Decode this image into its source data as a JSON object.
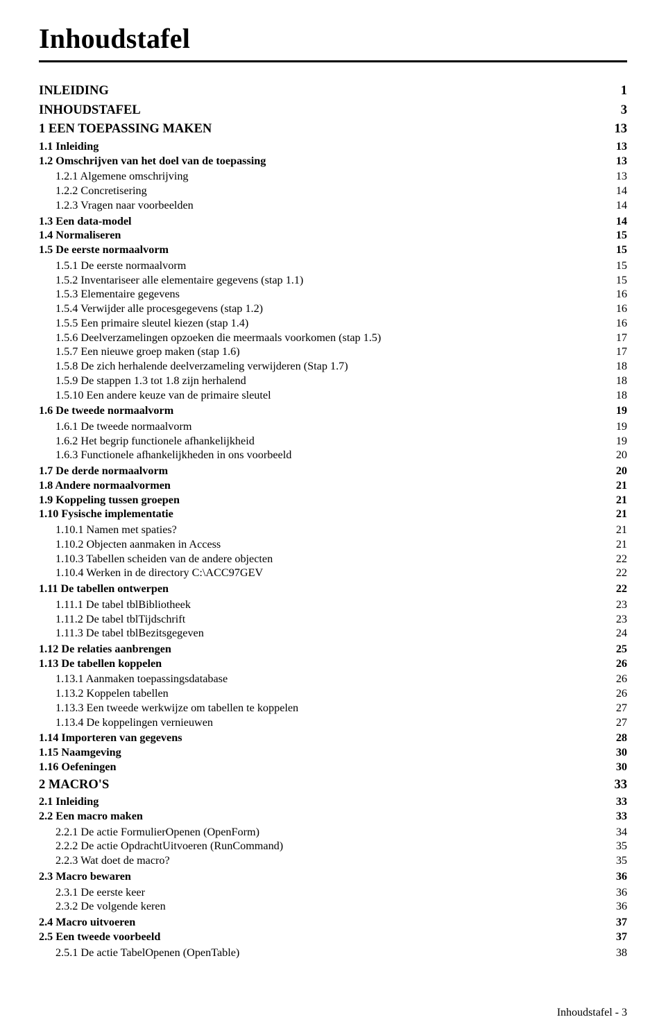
{
  "page": {
    "title": "Inhoudstafel",
    "footer": "Inhoudstafel - 3"
  },
  "toc": [
    {
      "label": "INLEIDING",
      "page": "1",
      "level": 1
    },
    {
      "label": "INHOUDSTAFEL",
      "page": "3",
      "level": 1
    },
    {
      "label": "1 EEN TOEPASSING MAKEN",
      "page": "13",
      "level": 1
    },
    {
      "label": "1.1 Inleiding",
      "page": "13",
      "level": 2
    },
    {
      "label": "1.2 Omschrijven van het doel van de toepassing",
      "page": "13",
      "level": 2
    },
    {
      "label": "1.2.1 Algemene omschrijving",
      "page": "13",
      "level": 3
    },
    {
      "label": "1.2.2 Concretisering",
      "page": "14",
      "level": 3
    },
    {
      "label": "1.2.3 Vragen naar voorbeelden",
      "page": "14",
      "level": 3
    },
    {
      "label": "1.3 Een data-model",
      "page": "14",
      "level": 2
    },
    {
      "label": "1.4 Normaliseren",
      "page": "15",
      "level": 2
    },
    {
      "label": "1.5 De eerste normaalvorm",
      "page": "15",
      "level": 2
    },
    {
      "label": "1.5.1 De eerste normaalvorm",
      "page": "15",
      "level": 3
    },
    {
      "label": "1.5.2 Inventariseer alle elementaire gegevens (stap 1.1)",
      "page": "15",
      "level": 3
    },
    {
      "label": "1.5.3 Elementaire gegevens",
      "page": "16",
      "level": 3
    },
    {
      "label": "1.5.4 Verwijder alle procesgegevens (stap 1.2)",
      "page": "16",
      "level": 3
    },
    {
      "label": "1.5.5 Een primaire sleutel kiezen (stap 1.4)",
      "page": "16",
      "level": 3
    },
    {
      "label": "1.5.6 Deelverzamelingen opzoeken die meermaals voorkomen (stap 1.5)",
      "page": "17",
      "level": 3
    },
    {
      "label": "1.5.7 Een nieuwe groep maken (stap 1.6)",
      "page": "17",
      "level": 3
    },
    {
      "label": "1.5.8 De zich herhalende deelverzameling verwijderen (Stap 1.7)",
      "page": "18",
      "level": 3
    },
    {
      "label": "1.5.9 De stappen 1.3 tot 1.8 zijn herhalend",
      "page": "18",
      "level": 3
    },
    {
      "label": "1.5.10 Een andere keuze van de primaire sleutel",
      "page": "18",
      "level": 3
    },
    {
      "label": "1.6 De tweede normaalvorm",
      "page": "19",
      "level": 2
    },
    {
      "label": "1.6.1 De tweede normaalvorm",
      "page": "19",
      "level": 3
    },
    {
      "label": "1.6.2 Het begrip functionele afhankelijkheid",
      "page": "19",
      "level": 3
    },
    {
      "label": "1.6.3 Functionele afhankelijkheden in ons voorbeeld",
      "page": "20",
      "level": 3
    },
    {
      "label": "1.7 De derde normaalvorm",
      "page": "20",
      "level": 2
    },
    {
      "label": "1.8 Andere normaalvormen",
      "page": "21",
      "level": 2
    },
    {
      "label": "1.9 Koppeling tussen groepen",
      "page": "21",
      "level": 2
    },
    {
      "label": "1.10 Fysische implementatie",
      "page": "21",
      "level": 2
    },
    {
      "label": "1.10.1 Namen met spaties?",
      "page": "21",
      "level": 3
    },
    {
      "label": "1.10.2 Objecten aanmaken in Access",
      "page": "21",
      "level": 3
    },
    {
      "label": "1.10.3 Tabellen scheiden van de andere objecten",
      "page": "22",
      "level": 3
    },
    {
      "label": "1.10.4 Werken in de directory C:\\ACC97GEV",
      "page": "22",
      "level": 3
    },
    {
      "label": "1.11 De tabellen ontwerpen",
      "page": "22",
      "level": 2
    },
    {
      "label": "1.11.1 De tabel tblBibliotheek",
      "page": "23",
      "level": 3
    },
    {
      "label": "1.11.2 De tabel tblTijdschrift",
      "page": "23",
      "level": 3
    },
    {
      "label": "1.11.3 De tabel tblBezitsgegeven",
      "page": "24",
      "level": 3
    },
    {
      "label": "1.12 De relaties aanbrengen",
      "page": "25",
      "level": 2
    },
    {
      "label": "1.13 De tabellen koppelen",
      "page": "26",
      "level": 2
    },
    {
      "label": "1.13.1 Aanmaken toepassingsdatabase",
      "page": "26",
      "level": 3
    },
    {
      "label": "1.13.2 Koppelen tabellen",
      "page": "26",
      "level": 3
    },
    {
      "label": "1.13.3 Een tweede werkwijze om tabellen te koppelen",
      "page": "27",
      "level": 3
    },
    {
      "label": "1.13.4 De koppelingen vernieuwen",
      "page": "27",
      "level": 3
    },
    {
      "label": "1.14 Importeren van gegevens",
      "page": "28",
      "level": 2
    },
    {
      "label": "1.15 Naamgeving",
      "page": "30",
      "level": 2
    },
    {
      "label": "1.16 Oefeningen",
      "page": "30",
      "level": 2
    },
    {
      "label": "2 MACRO'S",
      "page": "33",
      "level": 1
    },
    {
      "label": "2.1 Inleiding",
      "page": "33",
      "level": 2
    },
    {
      "label": "2.2 Een macro maken",
      "page": "33",
      "level": 2
    },
    {
      "label": "2.2.1 De actie FormulierOpenen (OpenForm)",
      "page": "34",
      "level": 3
    },
    {
      "label": "2.2.2 De actie OpdrachtUitvoeren (RunCommand)",
      "page": "35",
      "level": 3
    },
    {
      "label": "2.2.3 Wat doet de macro?",
      "page": "35",
      "level": 3
    },
    {
      "label": "2.3 Macro bewaren",
      "page": "36",
      "level": 2
    },
    {
      "label": "2.3.1 De eerste keer",
      "page": "36",
      "level": 3
    },
    {
      "label": "2.3.2 De volgende keren",
      "page": "36",
      "level": 3
    },
    {
      "label": "2.4 Macro uitvoeren",
      "page": "37",
      "level": 2
    },
    {
      "label": "2.5 Een tweede voorbeeld",
      "page": "37",
      "level": 2
    },
    {
      "label": "2.5.1 De actie TabelOpenen (OpenTable)",
      "page": "38",
      "level": 3
    }
  ]
}
